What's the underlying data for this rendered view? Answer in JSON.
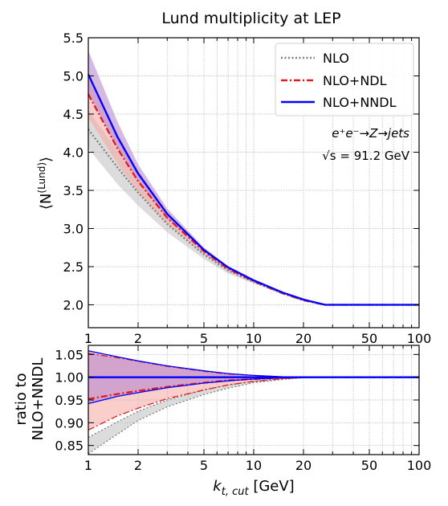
{
  "chart_data": [
    {
      "type": "line",
      "title": "Lund multiplicity at LEP",
      "xlabel": "",
      "ylabel": "⟨N(Lund)⟩",
      "ylabel_main": "⟨N",
      "ylabel_sup": "(Lund)",
      "ylabel_close": "⟩",
      "xscale": "log",
      "xlim": [
        1,
        100
      ],
      "ylim": [
        1.7,
        5.5
      ],
      "x_ticks": [
        1,
        2,
        5,
        10,
        20,
        50,
        100
      ],
      "x_tick_labels": [
        "1",
        "2",
        "5",
        "10",
        "20",
        "50",
        "100"
      ],
      "y_ticks": [
        2.0,
        2.5,
        3.0,
        3.5,
        4.0,
        4.5,
        5.0,
        5.5
      ],
      "y_tick_labels": [
        "2.0",
        "2.5",
        "3.0",
        "3.5",
        "4.0",
        "4.5",
        "5.0",
        "5.5"
      ],
      "grid": true,
      "legend_position": "top-right",
      "annotation_line1": "e⁺e⁻→Z→jets",
      "annotation_line2": "√s = 91.2 GeV",
      "x": [
        1,
        1.5,
        2,
        3,
        5,
        7,
        10,
        15,
        20,
        27,
        30,
        50,
        100
      ],
      "series": [
        {
          "name": "NLO",
          "color": "#7f7f7f",
          "style": "dotted",
          "values": [
            4.3,
            3.8,
            3.47,
            3.06,
            2.66,
            2.45,
            2.3,
            2.15,
            2.06,
            2.0,
            2.0,
            2.0,
            2.0
          ],
          "band_low": [
            4.05,
            3.58,
            3.3,
            2.95,
            2.6,
            2.41,
            2.28,
            2.14,
            2.05,
            2.0,
            2.0,
            2.0,
            2.0
          ],
          "band_high": [
            4.55,
            4.02,
            3.64,
            3.17,
            2.72,
            2.49,
            2.33,
            2.16,
            2.07,
            2.0,
            2.0,
            2.0,
            2.0
          ],
          "band_color": "#bfbfbf"
        },
        {
          "name": "NLO+NDL",
          "color": "#e31a1c",
          "style": "dashdot",
          "values": [
            4.76,
            4.05,
            3.62,
            3.14,
            2.7,
            2.47,
            2.31,
            2.15,
            2.06,
            2.0,
            2.0,
            2.0,
            2.0
          ],
          "band_low": [
            4.45,
            3.85,
            3.48,
            3.06,
            2.66,
            2.45,
            2.3,
            2.15,
            2.06,
            2.0,
            2.0,
            2.0,
            2.0
          ],
          "band_high": [
            5.05,
            4.25,
            3.76,
            3.22,
            2.74,
            2.5,
            2.33,
            2.16,
            2.07,
            2.0,
            2.0,
            2.0,
            2.0
          ],
          "band_color": "#f4a6a0"
        },
        {
          "name": "NLO+NNDL",
          "color": "#0000ff",
          "style": "solid",
          "values": [
            5.02,
            4.2,
            3.72,
            3.19,
            2.72,
            2.49,
            2.32,
            2.16,
            2.07,
            2.0,
            2.0,
            2.0,
            2.0
          ],
          "band_low": [
            4.78,
            4.05,
            3.63,
            3.14,
            2.7,
            2.47,
            2.31,
            2.15,
            2.06,
            2.0,
            2.0,
            2.0,
            2.0
          ],
          "band_high": [
            5.33,
            4.4,
            3.84,
            3.26,
            2.75,
            2.51,
            2.34,
            2.17,
            2.07,
            2.0,
            2.0,
            2.0,
            2.0
          ],
          "band_color": "#b07fd0"
        }
      ]
    },
    {
      "type": "line",
      "title": "",
      "xlabel_main": "k",
      "xlabel_sub": "t, cut",
      "xlabel_unit": " [GeV]",
      "ylabel_line1": "ratio to",
      "ylabel_line2": "NLO+NNDL",
      "xscale": "log",
      "xlim": [
        1,
        100
      ],
      "ylim": [
        0.83,
        1.07
      ],
      "x_ticks": [
        1,
        2,
        5,
        10,
        20,
        50,
        100
      ],
      "x_tick_labels": [
        "1",
        "2",
        "5",
        "10",
        "20",
        "50",
        "100"
      ],
      "y_ticks": [
        0.85,
        0.9,
        0.95,
        1.0,
        1.05
      ],
      "y_tick_labels": [
        "0.85",
        "0.90",
        "0.95",
        "1.00",
        "1.05"
      ],
      "grid": true,
      "x": [
        1,
        1.5,
        2,
        3,
        5,
        7,
        10,
        15,
        20,
        27,
        30,
        50,
        100
      ],
      "series": [
        {
          "name": "NLO",
          "color": "#7f7f7f",
          "style": "dotted",
          "band_low": [
            0.832,
            0.875,
            0.905,
            0.935,
            0.962,
            0.976,
            0.988,
            0.995,
            0.999,
            1.0,
            1.0,
            1.0,
            1.0
          ],
          "band_high": [
            0.868,
            0.902,
            0.925,
            0.95,
            0.972,
            0.983,
            0.991,
            0.997,
            0.999,
            1.0,
            1.0,
            1.0,
            1.0
          ],
          "band_color": "#bfbfbf"
        },
        {
          "name": "NLO+NDL",
          "color": "#e31a1c",
          "style": "dashdot",
          "values": [
            0.952,
            0.963,
            0.97,
            0.979,
            0.988,
            0.993,
            0.996,
            0.999,
            1.0,
            1.0,
            1.0,
            1.0,
            1.0
          ],
          "band_low": [
            0.884,
            0.915,
            0.932,
            0.953,
            0.972,
            0.983,
            0.991,
            0.997,
            0.999,
            1.0,
            1.0,
            1.0,
            1.0
          ],
          "band_high": [
            1.052,
            1.043,
            1.035,
            1.024,
            1.013,
            1.007,
            1.004,
            1.001,
            1.0,
            1.0,
            1.0,
            1.0,
            1.0
          ],
          "band_color": "#f4a6a0"
        },
        {
          "name": "NLO+NNDL",
          "color": "#0000ff",
          "style": "solid",
          "values": [
            1.0,
            1.0,
            1.0,
            1.0,
            1.0,
            1.0,
            1.0,
            1.0,
            1.0,
            1.0,
            1.0,
            1.0,
            1.0
          ],
          "band_low": [
            0.942,
            0.958,
            0.966,
            0.977,
            0.987,
            0.992,
            0.996,
            0.999,
            1.0,
            1.0,
            1.0,
            1.0,
            1.0
          ],
          "band_high": [
            1.058,
            1.045,
            1.036,
            1.025,
            1.014,
            1.008,
            1.004,
            1.001,
            1.0,
            1.0,
            1.0,
            1.0,
            1.0
          ],
          "band_color": "#b07fd0"
        }
      ]
    }
  ]
}
